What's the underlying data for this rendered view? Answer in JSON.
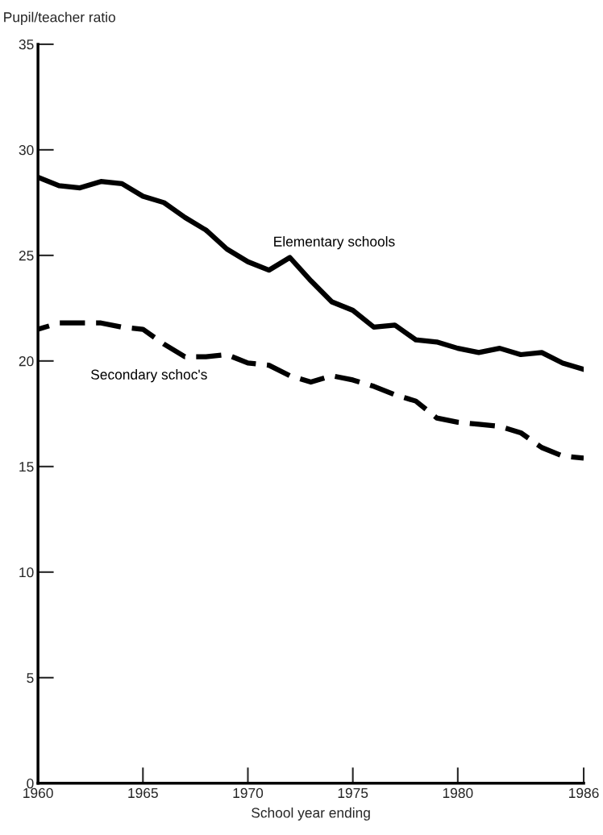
{
  "chart_data": {
    "type": "line",
    "ylabel": "Pupil/teacher ratio",
    "xlabel": "School year ending",
    "x": [
      1960,
      1961,
      1962,
      1963,
      1964,
      1965,
      1966,
      1967,
      1968,
      1969,
      1970,
      1971,
      1972,
      1973,
      1974,
      1975,
      1976,
      1977,
      1978,
      1979,
      1980,
      1981,
      1982,
      1983,
      1984,
      1985,
      1986
    ],
    "series": [
      {
        "name": "Elementary schools",
        "color": "#000000",
        "line_style": "solid",
        "values": [
          28.7,
          28.3,
          28.2,
          28.5,
          28.4,
          27.8,
          27.5,
          26.8,
          26.2,
          25.3,
          24.7,
          24.3,
          24.9,
          23.8,
          22.8,
          22.4,
          21.6,
          21.7,
          21.0,
          20.9,
          20.6,
          20.4,
          20.6,
          20.3,
          20.4,
          19.9,
          19.6
        ]
      },
      {
        "name": "Secondary schoc's",
        "color": "#000000",
        "line_style": "dashed",
        "values": [
          21.5,
          21.8,
          21.8,
          21.8,
          21.6,
          21.5,
          20.8,
          20.2,
          20.2,
          20.3,
          19.9,
          19.8,
          19.3,
          19.0,
          19.3,
          19.1,
          18.8,
          18.4,
          18.1,
          17.3,
          17.1,
          17.0,
          16.9,
          16.6,
          15.9,
          15.5,
          15.4
        ]
      }
    ],
    "xlim": [
      1960,
      1986
    ],
    "xticks": [
      1960,
      1965,
      1970,
      1975,
      1980,
      1986
    ],
    "ylim": [
      0,
      35
    ],
    "yticks": [
      0,
      5,
      10,
      15,
      20,
      25,
      30,
      35
    ],
    "grid": false,
    "legend": false,
    "marker": "none"
  }
}
